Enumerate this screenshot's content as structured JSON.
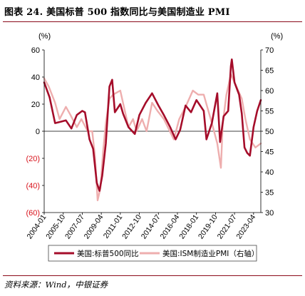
{
  "figure": {
    "title": "图表 24.  美国标普 500 指数同比与美国制造业 PMI",
    "source": "资料来源：Wind，中银证券"
  },
  "colors": {
    "sp500": "#a50d2a",
    "pmi": "#eeaeae",
    "negative_tick": "#d8111a",
    "rule": "#8b0a1a"
  },
  "chart_data": {
    "type": "line",
    "left_unit": "(%)",
    "right_unit": "(%)",
    "left_ylim": [
      -60,
      60
    ],
    "right_ylim": [
      30,
      70
    ],
    "left_ticks": [
      "60",
      "40",
      "20",
      "0",
      "(20)",
      "(40)",
      "(60)"
    ],
    "left_tick_values": [
      60,
      40,
      20,
      0,
      -20,
      -40,
      -60
    ],
    "right_ticks": [
      "70",
      "65",
      "60",
      "55",
      "50",
      "45",
      "40",
      "35",
      "30"
    ],
    "right_tick_values": [
      70,
      65,
      60,
      55,
      50,
      45,
      40,
      35,
      30
    ],
    "x_ticks": [
      "2004-01",
      "2005-10",
      "2007-07",
      "2009-04",
      "2011-01",
      "2012-10",
      "2014-07",
      "2016-04",
      "2018-01",
      "2019-10",
      "2021-07",
      "2023-04"
    ],
    "x_range": [
      "2004-01",
      "2023-12"
    ],
    "legend": {
      "placement": "bottom"
    },
    "series": [
      {
        "name": "美国:标普500同比",
        "axis": "left",
        "x": [
          "2004-01",
          "2004-07",
          "2005-01",
          "2005-07",
          "2006-01",
          "2006-07",
          "2007-01",
          "2007-07",
          "2007-10",
          "2008-03",
          "2008-07",
          "2008-11",
          "2009-02",
          "2009-05",
          "2009-09",
          "2010-01",
          "2010-04",
          "2010-07",
          "2011-01",
          "2011-04",
          "2011-10",
          "2012-05",
          "2012-10",
          "2013-05",
          "2013-12",
          "2014-07",
          "2015-01",
          "2015-08",
          "2016-02",
          "2016-07",
          "2017-01",
          "2017-07",
          "2018-01",
          "2018-09",
          "2018-12",
          "2019-06",
          "2019-12",
          "2020-03",
          "2020-07",
          "2020-12",
          "2021-03",
          "2021-04",
          "2021-07",
          "2021-12",
          "2022-03",
          "2022-06",
          "2022-09",
          "2022-12",
          "2023-04",
          "2023-08",
          "2023-12"
        ],
        "values": [
          36,
          25,
          6,
          7,
          8,
          2,
          12,
          15,
          14,
          -6,
          -13,
          -38,
          -44,
          -33,
          -9,
          33,
          38,
          14,
          20,
          13,
          3,
          -2,
          12,
          21,
          28,
          19,
          12,
          3,
          -6,
          1,
          19,
          14,
          23,
          15,
          -6,
          6,
          28,
          -8,
          11,
          15,
          48,
          53,
          36,
          27,
          13,
          -12,
          -16,
          -18,
          3,
          15,
          23
        ]
      },
      {
        "name": "美国:ISM制造业PMI（右轴）",
        "axis": "right",
        "x": [
          "2004-01",
          "2004-06",
          "2005-01",
          "2005-06",
          "2006-01",
          "2006-06",
          "2007-01",
          "2007-06",
          "2008-01",
          "2008-06",
          "2008-09",
          "2008-12",
          "2009-03",
          "2009-06",
          "2009-09",
          "2010-01",
          "2010-05",
          "2011-01",
          "2011-06",
          "2011-10",
          "2012-03",
          "2012-07",
          "2013-01",
          "2013-06",
          "2013-12",
          "2014-06",
          "2015-01",
          "2015-12",
          "2016-06",
          "2017-01",
          "2017-09",
          "2018-03",
          "2018-09",
          "2019-06",
          "2019-12",
          "2020-04",
          "2020-06",
          "2020-10",
          "2021-03",
          "2021-09",
          "2022-03",
          "2022-07",
          "2022-12",
          "2023-06",
          "2023-12"
        ],
        "values": [
          63,
          61,
          57,
          53,
          56,
          54,
          51,
          53,
          50,
          50,
          44,
          33,
          36,
          45,
          52,
          58,
          59,
          60,
          55,
          51,
          53,
          50,
          53,
          50,
          57,
          55,
          53,
          48,
          53,
          56,
          60,
          59,
          59,
          52,
          47,
          41,
          52,
          59,
          64,
          61,
          58,
          53,
          48,
          46,
          47
        ]
      }
    ]
  }
}
